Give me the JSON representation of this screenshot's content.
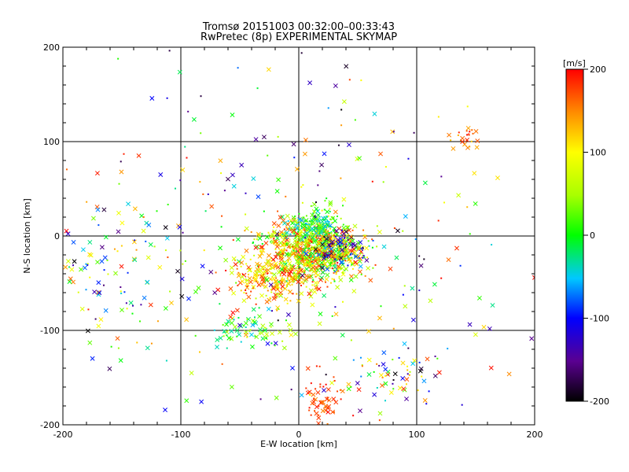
{
  "chart_data": {
    "type": "scatter",
    "title": "Tromsø 20151003 00:32:00–00:33:43",
    "subtitle": "RwPretec (8p) EXPERIMENTAL SKYMAP",
    "xlabel": "E-W location [km]",
    "ylabel": "N-S location [km]",
    "xlim": [
      -200,
      200
    ],
    "ylim": [
      -200,
      200
    ],
    "xticks": [
      -200,
      -100,
      0,
      100,
      200
    ],
    "yticks": [
      -200,
      -100,
      0,
      100,
      200
    ],
    "grid": true,
    "colorbar": {
      "label": "[m/s]",
      "min": -200,
      "max": 200,
      "ticks": [
        200,
        100,
        0,
        -100,
        -200
      ],
      "colormap": "black-purple-blue-cyan-green-yellow-orange-red"
    },
    "markers": [
      "cross (x)",
      "dot"
    ],
    "clusters": [
      {
        "cx": 10,
        "cy": -15,
        "sx": 22,
        "sy": 16,
        "n": 700,
        "vmin": -20,
        "vmax": 200
      },
      {
        "cx": -25,
        "cy": -45,
        "sx": 20,
        "sy": 14,
        "n": 220,
        "vmin": 60,
        "vmax": 200
      },
      {
        "cx": 15,
        "cy": 10,
        "sx": 12,
        "sy": 10,
        "n": 160,
        "vmin": -60,
        "vmax": 60
      },
      {
        "cx": 35,
        "cy": -15,
        "sx": 12,
        "sy": 10,
        "n": 160,
        "vmin": -200,
        "vmax": 200
      },
      {
        "cx": -40,
        "cy": -100,
        "sx": 15,
        "sy": 10,
        "n": 70,
        "vmin": -50,
        "vmax": 80
      },
      {
        "cx": -160,
        "cy": -40,
        "sx": 25,
        "sy": 35,
        "n": 100,
        "vmin": -200,
        "vmax": 200
      },
      {
        "cx": 20,
        "cy": -175,
        "sx": 10,
        "sy": 15,
        "n": 60,
        "vmin": 150,
        "vmax": 200
      },
      {
        "cx": 80,
        "cy": -150,
        "sx": 25,
        "sy": 15,
        "n": 60,
        "vmin": -200,
        "vmax": 200
      },
      {
        "cx": 140,
        "cy": 105,
        "sx": 8,
        "sy": 6,
        "n": 25,
        "vmin": 120,
        "vmax": 200
      },
      {
        "cx": 0,
        "cy": 0,
        "sx": 110,
        "sy": 110,
        "n": 320,
        "vmin": -200,
        "vmax": 200
      }
    ]
  }
}
